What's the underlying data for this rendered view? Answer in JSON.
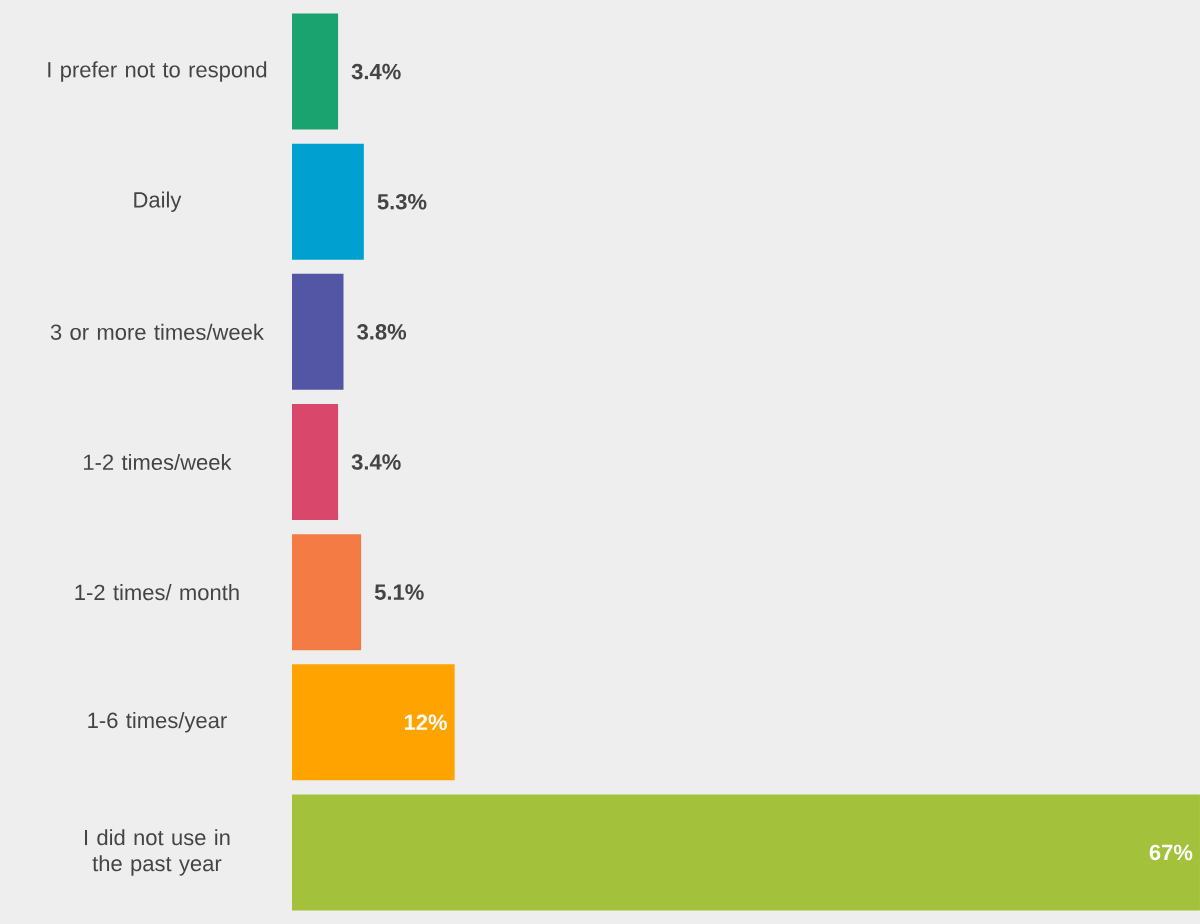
{
  "chart_data": {
    "type": "bar",
    "orientation": "horizontal",
    "categories": [
      "I prefer not to respond",
      "Daily",
      "3 or more times/week",
      "1-2 times/week",
      "1-2 times/ month",
      "1-6 times/year",
      "I did not use in the past year"
    ],
    "values": [
      3.4,
      5.3,
      3.8,
      3.4,
      5.1,
      12,
      67
    ],
    "value_labels": [
      "3.4%",
      "5.3%",
      "3.8%",
      "3.4%",
      "5.1%",
      "12%",
      "67%"
    ],
    "colors": [
      "#1aa36f",
      "#00a0d0",
      "#5356a5",
      "#d9476a",
      "#f47b43",
      "#ffa300",
      "#a3c13a"
    ]
  }
}
